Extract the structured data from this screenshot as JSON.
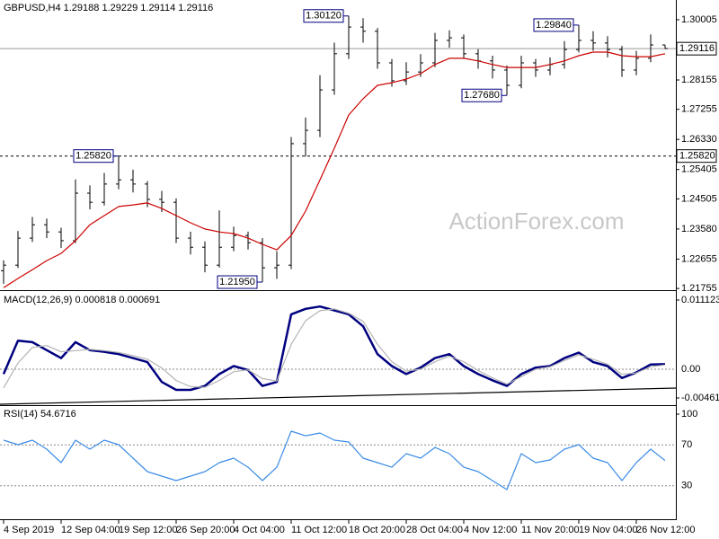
{
  "chart_data": [
    {
      "type": "ohlc",
      "title": "GBPUSD,H4  1.29188 1.29229 1.29114 1.29116",
      "watermark": "ActionForex.com",
      "categories": [
        "4 Sep 2019",
        null,
        null,
        null,
        "12 Sep 04:00",
        null,
        null,
        null,
        "19 Sep 12:00",
        null,
        null,
        null,
        "26 Sep 20:00",
        null,
        null,
        null,
        "4 Oct 04:00",
        null,
        null,
        null,
        "11 Oct 12:00",
        null,
        null,
        null,
        "18 Oct 20:00",
        null,
        null,
        null,
        "28 Oct 04:00",
        null,
        null,
        null,
        "4 Nov 12:00",
        null,
        null,
        null,
        "11 Nov 20:00",
        null,
        null,
        null,
        "19 Nov 04:00",
        null,
        null,
        null,
        "26 Nov 12:00",
        null,
        null
      ],
      "open": [
        1.223,
        1.2247,
        1.233,
        1.2371,
        1.2349,
        1.2322,
        1.2468,
        1.244,
        1.2496,
        1.2509,
        1.2496,
        1.2449,
        1.244,
        1.233,
        1.2302,
        1.2247,
        1.2302,
        1.2338,
        1.2316,
        1.2239,
        1.2247,
        1.262,
        1.2661,
        1.2785,
        1.2896,
        1.2978,
        1.2965,
        1.2868,
        1.2813,
        1.284,
        1.2868,
        1.2937,
        1.2945,
        1.2896,
        1.2874,
        1.2846,
        1.2799,
        1.2868,
        1.2846,
        1.2863,
        1.2909,
        1.2937,
        1.2929,
        1.2909,
        1.2846,
        1.2882,
        1.2923
      ],
      "high": [
        1.2262,
        1.2352,
        1.2395,
        1.239,
        1.2362,
        1.251,
        1.2492,
        1.253,
        1.2582,
        1.254,
        1.2505,
        1.2475,
        1.2452,
        1.235,
        1.232,
        1.2415,
        1.2365,
        1.235,
        1.233,
        1.229,
        1.264,
        1.27,
        1.283,
        1.293,
        1.3012,
        1.3005,
        1.2975,
        1.288,
        1.287,
        1.2895,
        1.296,
        1.2968,
        1.2955,
        1.291,
        1.289,
        1.286,
        1.289,
        1.288,
        1.2885,
        1.2935,
        1.2984,
        1.2965,
        1.295,
        1.292,
        1.2905,
        1.2955,
        1.2923
      ],
      "low": [
        1.219,
        1.2238,
        1.2318,
        1.233,
        1.23,
        1.2315,
        1.2418,
        1.243,
        1.248,
        1.247,
        1.2425,
        1.241,
        1.2315,
        1.228,
        1.2225,
        1.224,
        1.229,
        1.2295,
        1.2195,
        1.2205,
        1.2235,
        1.258,
        1.264,
        1.277,
        1.288,
        1.293,
        1.285,
        1.2795,
        1.28,
        1.2825,
        1.2855,
        1.2915,
        1.288,
        1.285,
        1.282,
        1.2768,
        1.279,
        1.2825,
        1.283,
        1.285,
        1.29,
        1.2905,
        1.2885,
        1.2825,
        1.283,
        1.287,
        1.2911
      ],
      "close": [
        1.2247,
        1.233,
        1.2371,
        1.2349,
        1.2322,
        1.2468,
        1.244,
        1.2496,
        1.2509,
        1.2496,
        1.2449,
        1.244,
        1.233,
        1.2302,
        1.2247,
        1.2302,
        1.2338,
        1.2316,
        1.2239,
        1.2247,
        1.262,
        1.2661,
        1.2785,
        1.2896,
        1.2978,
        1.2965,
        1.2868,
        1.2813,
        1.284,
        1.2868,
        1.2937,
        1.2945,
        1.2896,
        1.2874,
        1.2846,
        1.2799,
        1.2868,
        1.2846,
        1.2863,
        1.2909,
        1.2937,
        1.2929,
        1.2909,
        1.2846,
        1.2882,
        1.2923,
        1.2912
      ],
      "color": "#000000",
      "series": [
        {
          "color": "#cc0000",
          "values": [
            1.2178,
            1.2206,
            1.2233,
            1.2261,
            1.2283,
            1.2322,
            1.2371,
            1.2399,
            1.2427,
            1.2432,
            1.2438,
            1.2421,
            1.2399,
            1.2377,
            1.2358,
            1.2349,
            1.2344,
            1.233,
            1.2311,
            1.2294,
            1.2338,
            1.2413,
            1.2509,
            1.2606,
            1.2708,
            1.2758,
            1.2799,
            1.2807,
            1.2818,
            1.2835,
            1.2863,
            1.2882,
            1.2882,
            1.2874,
            1.2863,
            1.2854,
            1.2854,
            1.2854,
            1.2863,
            1.2874,
            1.289,
            1.2901,
            1.2901,
            1.289,
            1.2887,
            1.2887,
            1.2896
          ]
        }
      ],
      "ylim": [
        1.2173,
        1.3061
      ],
      "yticks": [
        1.30005,
        1.28155,
        1.27255,
        {
          "value": 1.2633,
          "label": "1.26330"
        },
        1.25405,
        1.24505,
        {
          "value": 1.2358,
          "label": "1.23580"
        },
        1.22655,
        1.21755
      ],
      "price_lines": [
        {
          "value": 1.29116,
          "label": "1.29116",
          "style": "solid"
        },
        {
          "value": 1.2582,
          "label": "1.25820",
          "style": "dashed"
        }
      ],
      "annotations": [
        {
          "value": 1.3012,
          "label": "1.30120"
        },
        {
          "value": 1.2582,
          "label": "1.25820"
        },
        {
          "value": 1.2195,
          "label": "1.21950"
        },
        {
          "value": 1.2984,
          "label": "1.29840"
        },
        {
          "value": 1.2768,
          "label": "1.27680"
        }
      ]
    },
    {
      "type": "line",
      "title": "MACD(12,26,9) 0.000818 0.000691",
      "series": [
        {
          "color": "#000080",
          "values": [
            -0.00077,
            0.0046,
            0.00435,
            0.00307,
            0.00179,
            0.00435,
            0.00307,
            0.00281,
            0.00243,
            0.00179,
            0.00115,
            -0.00204,
            -0.00332,
            -0.00332,
            -0.00268,
            -0.00077,
            0.00051,
            -0.00013,
            -0.00268,
            -0.00204,
            0.00882,
            0.00971,
            0.01009,
            0.00946,
            0.00882,
            0.0069,
            0.00243,
            0.00051,
            -0.00077,
            0.00026,
            0.00179,
            0.00243,
            0.00051,
            -0.00077,
            -0.00179,
            -0.00268,
            -0.00077,
            0.00026,
            0.00051,
            0.00179,
            0.00268,
            0.00115,
            0.00051,
            -0.00141,
            -0.00051,
            0.00077,
            0.000818
          ]
        },
        {
          "color": "#b4b4b4",
          "values": [
            -0.003,
            0.001,
            0.0035,
            0.0038,
            0.0028,
            0.003,
            0.0032,
            0.003,
            0.0027,
            0.0022,
            0.0016,
            0.0002,
            -0.0018,
            -0.0028,
            -0.0029,
            -0.0018,
            -0.0004,
            -0.0001,
            -0.0015,
            -0.0019,
            0.004,
            0.0078,
            0.0094,
            0.0097,
            0.009,
            0.0077,
            0.004,
            0.0012,
            -0.0003,
            0.0,
            0.0012,
            0.0021,
            0.0012,
            -0.0002,
            -0.0014,
            -0.0024,
            -0.0012,
            0.0,
            0.0004,
            0.0014,
            0.0023,
            0.0016,
            0.0008,
            -0.0008,
            -0.0006,
            0.0004,
            0.000691
          ]
        }
      ],
      "ylim": [
        -0.004617,
        0.011123
      ],
      "yticks": [
        0.011123,
        -0.004617
      ],
      "levels": [
        {
          "value": 0,
          "label": "0.00"
        }
      ]
    },
    {
      "type": "line",
      "title": "RSI(14) 54.6716",
      "series": [
        {
          "color": "#3c8ce6",
          "values": [
            74.6,
            70.2,
            74.6,
            65.8,
            52.6,
            74.6,
            65.8,
            74.6,
            70.2,
            57,
            43.9,
            39.5,
            35.1,
            39.5,
            43.9,
            52.6,
            57,
            48.2,
            35.1,
            48.2,
            83.3,
            78.9,
            81.6,
            74.6,
            72.8,
            57,
            52.6,
            48.2,
            61.4,
            57,
            67.5,
            61.4,
            48.2,
            43.9,
            35.1,
            26.3,
            61.4,
            52.6,
            55.3,
            65.8,
            70.2,
            57,
            52.6,
            35.1,
            52.6,
            65.8,
            54.6716
          ]
        }
      ],
      "ylim": [
        0,
        100
      ],
      "yticks": [
        100
      ],
      "levels": [
        70,
        30
      ]
    }
  ]
}
